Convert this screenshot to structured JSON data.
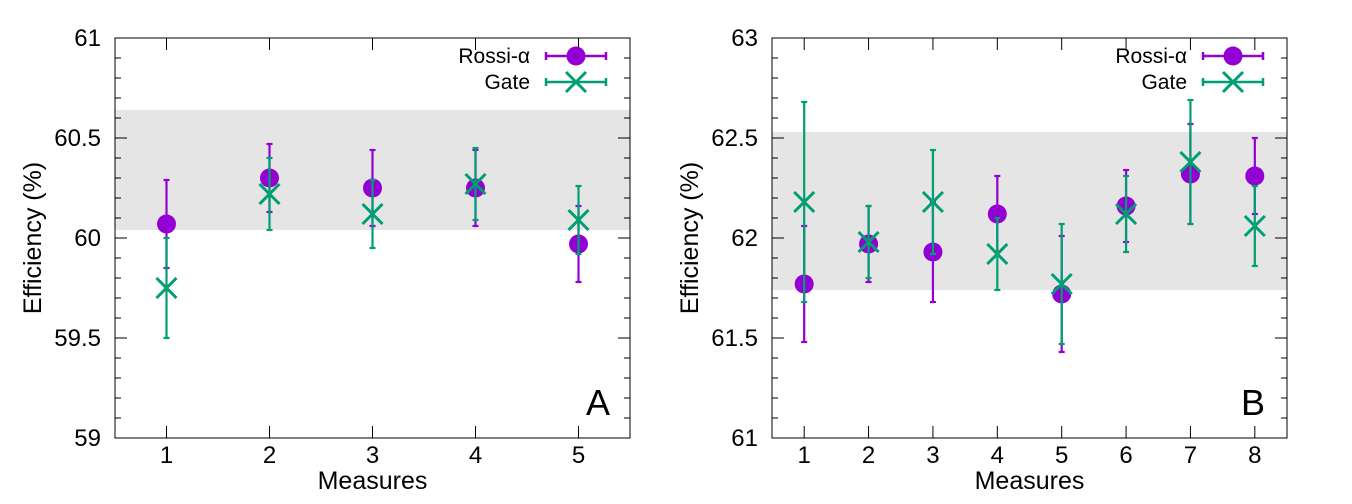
{
  "chart_data": [
    {
      "type": "scatter",
      "panel_label": "A",
      "xlabel": "Measures",
      "ylabel": "Efficiency (%)",
      "xlim": [
        0.5,
        5.5
      ],
      "ylim": [
        59,
        61
      ],
      "x_ticks": [
        1,
        2,
        3,
        4,
        5
      ],
      "x_tick_labels": [
        "1",
        "2",
        "3",
        "4",
        "5"
      ],
      "y_ticks": [
        59,
        59.5,
        60,
        60.5,
        61
      ],
      "y_tick_labels": [
        "59",
        "59.5",
        "60",
        "60.5",
        "61"
      ],
      "y_minor_step": 0.1,
      "band": [
        60.04,
        60.64
      ],
      "band_color": "#e5e5e5",
      "legend_position": "top-right",
      "series": [
        {
          "name": "Rossi-α",
          "marker": "circle",
          "color": "#9400d3",
          "x": [
            1,
            2,
            3,
            4,
            5
          ],
          "y": [
            60.07,
            60.3,
            60.25,
            60.25,
            59.97
          ],
          "err": [
            0.22,
            0.17,
            0.19,
            0.19,
            0.19
          ]
        },
        {
          "name": "Gate",
          "marker": "cross",
          "color": "#009e73",
          "x": [
            1,
            2,
            3,
            4,
            5
          ],
          "y": [
            59.75,
            60.22,
            60.12,
            60.27,
            60.09
          ],
          "err": [
            0.25,
            0.18,
            0.17,
            0.18,
            0.17
          ]
        }
      ]
    },
    {
      "type": "scatter",
      "panel_label": "B",
      "xlabel": "Measures",
      "ylabel": "Efficiency (%)",
      "xlim": [
        0.5,
        8.5
      ],
      "ylim": [
        61,
        63
      ],
      "x_ticks": [
        1,
        2,
        3,
        4,
        5,
        6,
        7,
        8
      ],
      "x_tick_labels": [
        "1",
        "2",
        "3",
        "4",
        "5",
        "6",
        "7",
        "8"
      ],
      "y_ticks": [
        61,
        61.5,
        62,
        62.5,
        63
      ],
      "y_tick_labels": [
        "61",
        "61.5",
        "62",
        "62.5",
        "63"
      ],
      "y_minor_step": 0.1,
      "band": [
        61.74,
        62.53
      ],
      "band_color": "#e5e5e5",
      "legend_position": "top-right",
      "series": [
        {
          "name": "Rossi-α",
          "marker": "circle",
          "color": "#9400d3",
          "x": [
            1,
            2,
            3,
            4,
            5,
            6,
            7,
            8
          ],
          "y": [
            61.77,
            61.97,
            61.93,
            62.12,
            61.72,
            62.16,
            62.32,
            62.31
          ],
          "err": [
            0.29,
            0.19,
            0.25,
            0.19,
            0.29,
            0.18,
            0.25,
            0.19
          ]
        },
        {
          "name": "Gate",
          "marker": "cross",
          "color": "#009e73",
          "x": [
            1,
            2,
            3,
            4,
            5,
            6,
            7,
            8
          ],
          "y": [
            62.18,
            61.98,
            62.18,
            61.92,
            61.77,
            62.12,
            62.38,
            62.06
          ],
          "err": [
            0.5,
            0.18,
            0.26,
            0.18,
            0.3,
            0.19,
            0.31,
            0.2
          ]
        }
      ]
    }
  ]
}
